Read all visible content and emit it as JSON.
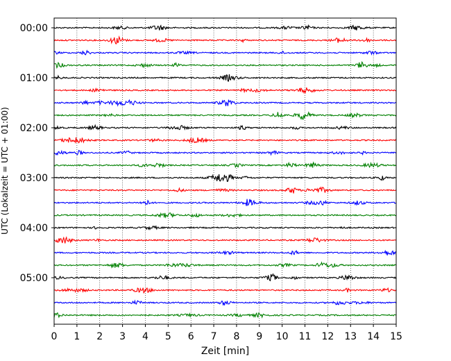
{
  "chart_data": {
    "type": "line",
    "title": "",
    "xlabel": "Zeit  [min]",
    "ylabel": "UTC (Lokalzeit = UTC + 01:00)",
    "xlim": [
      0,
      15
    ],
    "x_ticks": [
      0,
      1,
      2,
      3,
      4,
      5,
      6,
      7,
      8,
      9,
      10,
      11,
      12,
      13,
      14,
      15
    ],
    "x_tick_labels": [
      "0",
      "1",
      "2",
      "3",
      "4",
      "5",
      "6",
      "7",
      "8",
      "9",
      "10",
      "11",
      "12",
      "13",
      "14",
      "15"
    ],
    "y_tick_labels": [
      "00:00",
      "01:00",
      "02:00",
      "03:00",
      "04:00",
      "05:00"
    ],
    "rows_per_hour": 4,
    "row_minutes": 15,
    "row_count": 24,
    "color_cycle": [
      "#000000",
      "#ff0000",
      "#0000ff",
      "#008000"
    ],
    "grid": "vertical dotted at each minute",
    "legend": "none"
  }
}
